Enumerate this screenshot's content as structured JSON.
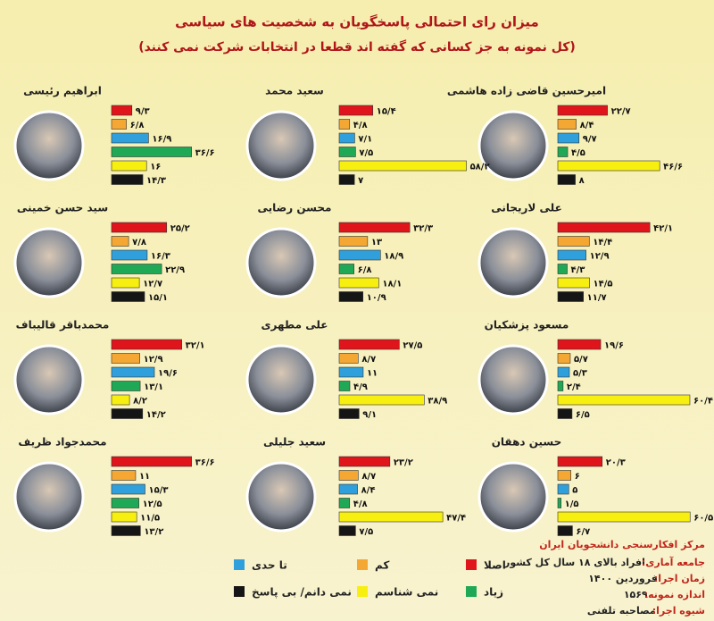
{
  "title": "میزان رای احتمالی پاسخگویان به شخصیت های سیاسی",
  "subtitle": "(کل نمونه به جز کسانی که گفته اند قطعا در انتخابات شرکت نمی کنند)",
  "legend": [
    {
      "name": "اصلا",
      "color": "#e0141b"
    },
    {
      "name": "کم",
      "color": "#f5a733"
    },
    {
      "name": "تا حدی",
      "color": "#2fa0dc"
    },
    {
      "name": "زیاد",
      "color": "#1fa855"
    },
    {
      "name": "نمی شناسم",
      "color": "#f7ef0f"
    },
    {
      "name": "نمی دانم/ بی پاسخ",
      "color": "#151515"
    }
  ],
  "chart_data": [
    {
      "type": "bar",
      "title": "امیرحسین قاضی زاده هاشمی",
      "values": [
        22.7,
        8.4,
        9.7,
        4.5,
        46.6,
        8
      ],
      "value_labels": [
        "۲۲/۷",
        "۸/۴",
        "۹/۷",
        "۴/۵",
        "۴۶/۶",
        "۸"
      ]
    },
    {
      "type": "bar",
      "title": "سعید محمد",
      "values": [
        15.4,
        4.8,
        7.1,
        7.5,
        58.2,
        7
      ],
      "value_labels": [
        "۱۵/۴",
        "۴/۸",
        "۷/۱",
        "۷/۵",
        "۵۸/۲",
        "۷"
      ]
    },
    {
      "type": "bar",
      "title": "ابراهیم رئیسی",
      "values": [
        9.3,
        6.8,
        16.9,
        36.6,
        16,
        14.3
      ],
      "value_labels": [
        "۹/۳",
        "۶/۸",
        "۱۶/۹",
        "۳۶/۶",
        "۱۶",
        "۱۴/۳"
      ]
    },
    {
      "type": "bar",
      "title": "علی لاریجانی",
      "values": [
        42.1,
        14.4,
        12.9,
        4.3,
        14.5,
        11.7
      ],
      "value_labels": [
        "۴۲/۱",
        "۱۴/۴",
        "۱۲/۹",
        "۴/۳",
        "۱۴/۵",
        "۱۱/۷"
      ]
    },
    {
      "type": "bar",
      "title": "محسن رضایی",
      "values": [
        32.3,
        13,
        18.9,
        6.8,
        18.1,
        10.9
      ],
      "value_labels": [
        "۳۲/۳",
        "۱۳",
        "۱۸/۹",
        "۶/۸",
        "۱۸/۱",
        "۱۰/۹"
      ]
    },
    {
      "type": "bar",
      "title": "سید حسن خمینی",
      "values": [
        25.2,
        7.8,
        16.3,
        22.9,
        12.7,
        15.1
      ],
      "value_labels": [
        "۲۵/۲",
        "۷/۸",
        "۱۶/۳",
        "۲۲/۹",
        "۱۲/۷",
        "۱۵/۱"
      ]
    },
    {
      "type": "bar",
      "title": "مسعود پزشکیان",
      "values": [
        19.6,
        5.7,
        5.3,
        2.4,
        60.4,
        6.5
      ],
      "value_labels": [
        "۱۹/۶",
        "۵/۷",
        "۵/۳",
        "۲/۴",
        "۶۰/۴",
        "۶/۵"
      ]
    },
    {
      "type": "bar",
      "title": "علی مطهری",
      "values": [
        27.5,
        8.7,
        11,
        4.9,
        38.9,
        9.1
      ],
      "value_labels": [
        "۲۷/۵",
        "۸/۷",
        "۱۱",
        "۴/۹",
        "۳۸/۹",
        "۹/۱"
      ]
    },
    {
      "type": "bar",
      "title": "محمدباقر قالیباف",
      "values": [
        32.1,
        12.9,
        19.6,
        13.1,
        8.2,
        14.2
      ],
      "value_labels": [
        "۳۲/۱",
        "۱۲/۹",
        "۱۹/۶",
        "۱۳/۱",
        "۸/۲",
        "۱۴/۲"
      ]
    },
    {
      "type": "bar",
      "title": "حسین دهقان",
      "values": [
        20.3,
        6,
        5,
        1.5,
        60.5,
        6.7
      ],
      "value_labels": [
        "۲۰/۳",
        "۶",
        "۵",
        "۱/۵",
        "۶۰/۵",
        "۶/۷"
      ]
    },
    {
      "type": "bar",
      "title": "سعید جلیلی",
      "values": [
        23.2,
        8.7,
        8.4,
        4.8,
        47.4,
        7.5
      ],
      "value_labels": [
        "۲۳/۲",
        "۸/۷",
        "۸/۴",
        "۴/۸",
        "۴۷/۴",
        "۷/۵"
      ]
    },
    {
      "type": "bar",
      "title": "محمدجواد ظریف",
      "values": [
        36.6,
        11,
        15.3,
        12.5,
        11.5,
        13.2
      ],
      "value_labels": [
        "۳۶/۶",
        "۱۱",
        "۱۵/۳",
        "۱۲/۵",
        "۱۱/۵",
        "۱۳/۲"
      ]
    }
  ],
  "source": {
    "org": "مرکز افکارسنجی دانشجویان ایران",
    "details": [
      {
        "label": "جامعه آماری:",
        "value": "افراد بالای ۱۸ سال کل کشور"
      },
      {
        "label": "زمان اجرا:",
        "value": "فروردین ۱۴۰۰"
      },
      {
        "label": "اندازه نمونه:",
        "value": "۱۵۶۹"
      },
      {
        "label": "شیوه اجرا:",
        "value": "مصاحبه تلفنی"
      }
    ]
  }
}
